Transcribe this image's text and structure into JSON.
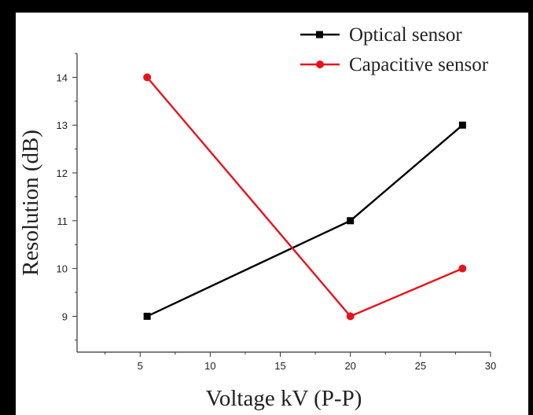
{
  "chart_data": {
    "type": "line",
    "xlabel": "Voltage kV (P-P)",
    "ylabel": "Resolution (dB)",
    "xlim": [
      0.5,
      30
    ],
    "ylim": [
      8.25,
      14.5
    ],
    "x_ticks": [
      5,
      10,
      15,
      20,
      25,
      30
    ],
    "y_ticks": [
      9,
      10,
      11,
      12,
      13,
      14
    ],
    "grid": false,
    "legend_position": "top-right",
    "series": [
      {
        "name": "Optical sensor",
        "color": "#000000",
        "marker": "square",
        "x": [
          5.5,
          20,
          28
        ],
        "y": [
          9,
          11,
          13
        ]
      },
      {
        "name": "Capacitive sensor",
        "color": "#e8141b",
        "marker": "circle",
        "x": [
          5.5,
          20,
          28
        ],
        "y": [
          14,
          9,
          10
        ]
      }
    ]
  }
}
